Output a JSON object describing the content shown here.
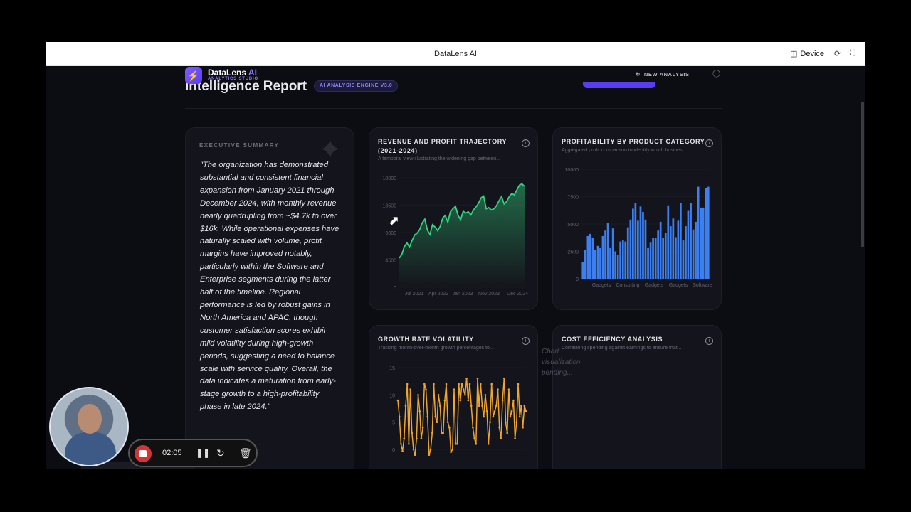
{
  "browser": {
    "title": "DataLens AI",
    "device_label": "Device",
    "device_icon": "devices-icon",
    "rotate_icon": "rotate-icon",
    "fullscreen_icon": "fullscreen-icon"
  },
  "header": {
    "logo_icon": "lightning-icon",
    "logo_name": "DataLens",
    "logo_ai": "AI",
    "logo_sub": "ANALYTICS STUDIO",
    "title": "Intelligence Report",
    "engine_badge": "AI ANALYSIS ENGINE V3.0",
    "new_analysis": "NEW ANALYSIS",
    "colors": {
      "accent": "#5a3df0",
      "background": "#0c0d12",
      "card": "#14151c"
    }
  },
  "summary": {
    "label": "EXECUTIVE SUMMARY",
    "text": "\"The organization has demonstrated substantial and consistent financial expansion from January 2021 through December 2024, with monthly revenue nearly quadrupling from ~$4.7k to over $16k. While operational expenses have naturally scaled with volume, profit margins have improved notably, particularly within the Software and Enterprise segments during the latter half of the timeline. Regional performance is led by robust gains in North America and APAC, though customer satisfaction scores exhibit mild volatility during high-growth periods, suggesting a need to balance scale with service quality. Overall, the data indicates a maturation from early-stage growth to a high-profitability phase in late 2024.\""
  },
  "cards": {
    "revenue": {
      "title_line1": "REVENUE AND PROFIT TRAJECTORY",
      "title_line2": "(2021-2024)",
      "subtitle": "A temporal view illustrating the widening gap between..."
    },
    "profitability": {
      "title": "PROFITABILITY BY PRODUCT CATEGORY",
      "subtitle": "Aggregated profit comparison to identify which busines..."
    },
    "growth": {
      "title": "GROWTH RATE VOLATILITY",
      "subtitle": "Tracking month-over-month growth percentages to..."
    },
    "cost": {
      "title": "COST EFFICIENCY ANALYSIS",
      "subtitle": "Correlating spending against earnings to ensure that...",
      "pending": "Chart visualization pending..."
    }
  },
  "chart_data": [
    {
      "type": "area",
      "yticks": [
        "0",
        "4500",
        "9000",
        "13500",
        "18000"
      ],
      "ylim": [
        0,
        18000
      ],
      "xticks": [
        "Jul 2021",
        "Apr 2022",
        "Jan 2023",
        "Nov 2023",
        "Dec 2024"
      ],
      "color": "#34d37f",
      "values": [
        4800,
        5400,
        6700,
        7300,
        6600,
        7700,
        8600,
        8900,
        9500,
        10600,
        11200,
        9400,
        8700,
        10300,
        9900,
        9300,
        10000,
        11400,
        11800,
        10700,
        12400,
        12900,
        13300,
        11800,
        11100,
        12500,
        12200,
        12400,
        11900,
        12700,
        13200,
        13800,
        14700,
        15000,
        12900,
        13100,
        12700,
        12900,
        13400,
        14200,
        14900,
        13700,
        14100,
        14900,
        15400,
        15200,
        16000,
        16800,
        17000,
        16600
      ]
    },
    {
      "type": "bar",
      "yticks": [
        "0",
        "2500",
        "5000",
        "7500",
        "10000"
      ],
      "ylim": [
        0,
        10000
      ],
      "xticks": [
        "Gadgets",
        "Consulting",
        "Gadgets",
        "Gadgets",
        "Software"
      ],
      "color": "#3b7ff0",
      "values": [
        1500,
        2600,
        3900,
        4100,
        3700,
        2600,
        3000,
        2800,
        3900,
        4400,
        5100,
        2800,
        4600,
        2500,
        2200,
        3400,
        3500,
        3400,
        4700,
        5400,
        6400,
        6900,
        5300,
        6600,
        6100,
        5400,
        2800,
        3300,
        3700,
        3700,
        4400,
        5200,
        3700,
        4200,
        6700,
        4800,
        5500,
        3800,
        5300,
        6900,
        3500,
        4800,
        6200,
        6900,
        4500,
        5200,
        8400,
        6500,
        6500,
        8300,
        8400
      ]
    },
    {
      "type": "line",
      "yticks": [
        "0",
        "5",
        "10",
        "15"
      ],
      "ylim": [
        0,
        15
      ],
      "color": "#f0a52e",
      "values": [
        9,
        6,
        1,
        -0.3,
        2,
        8,
        12,
        1,
        11,
        3,
        0,
        -1,
        2,
        10,
        7,
        2,
        4,
        12,
        11,
        6,
        -1,
        0,
        3,
        12,
        6,
        5,
        10,
        8,
        3,
        3,
        9,
        12,
        5,
        4,
        -0.5,
        0,
        11,
        1,
        1,
        12,
        9,
        12,
        11,
        10,
        13,
        9,
        12,
        8,
        4,
        2,
        1,
        13,
        8,
        12,
        8,
        6,
        10,
        7,
        1,
        5,
        12,
        6,
        7,
        8,
        11,
        4,
        2,
        9,
        13,
        5,
        3,
        11,
        6,
        7,
        9,
        2,
        5,
        12,
        6,
        8,
        4,
        8,
        7
      ]
    }
  ],
  "recorder": {
    "time": "02:05"
  }
}
